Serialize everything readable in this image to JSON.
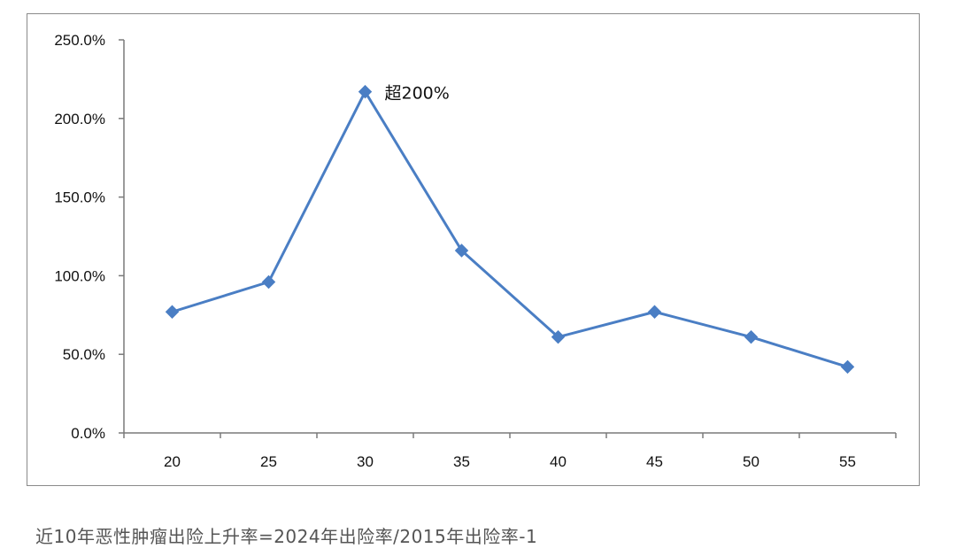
{
  "chart_data": {
    "type": "line",
    "categories": [
      "20",
      "25",
      "30",
      "35",
      "40",
      "45",
      "50",
      "55"
    ],
    "series": [
      {
        "values": [
          77.0,
          96.0,
          217.0,
          116.0,
          61.0,
          77.0,
          61.0,
          42.0
        ]
      }
    ],
    "y_ticks": [
      "0.0%",
      "50.0%",
      "100.0%",
      "150.0%",
      "200.0%",
      "250.0%"
    ],
    "ylim": [
      0,
      250
    ],
    "grid": false,
    "marker": "diamond",
    "line_color": "#4a7ec4",
    "annotations": [
      {
        "category": "30",
        "text": "超200%"
      }
    ]
  },
  "caption": "近10年恶性肿瘤出险上升率=2024年出险率/2015年出险率-1"
}
